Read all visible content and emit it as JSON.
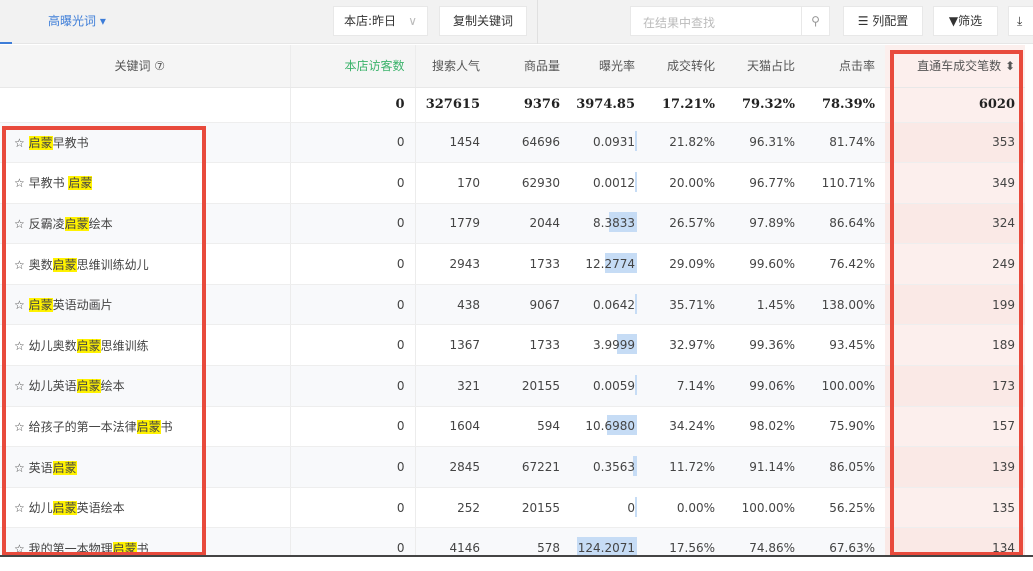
{
  "toolbar": {
    "tab": "高曝光词 ▾",
    "store_select": "本店:昨日",
    "copy_button": "复制关键词",
    "search_placeholder": "在结果中查找",
    "column_config": "☰ 列配置",
    "filter": "▼筛选",
    "download_icon": "download-icon"
  },
  "columns": [
    "关键词 ⑦",
    "本店访客数",
    "搜索人气",
    "商品量",
    "曝光率",
    "成交转化",
    "天猫占比",
    "点击率",
    "直通车成交笔数 ⬍"
  ],
  "colors": {
    "accent": "#3d7dd8",
    "highlight": "#fff200",
    "red_box": "#e84a3c",
    "visitors_header": "#3bb36b"
  },
  "total": [
    "",
    "0",
    "327615",
    "9376",
    "3974.85",
    "17.21%",
    "79.32%",
    "78.39%",
    "6020"
  ],
  "rows": [
    {
      "pre": "☆ ",
      "hl": "启蒙",
      "post": "早教书",
      "v": [
        "0",
        "1454",
        "64696",
        "0.0931",
        "21.82%",
        "96.31%",
        "81.74%",
        "353"
      ]
    },
    {
      "pre": "☆ 早教书 ",
      "hl": "启蒙",
      "post": "",
      "v": [
        "0",
        "170",
        "62930",
        "0.0012",
        "20.00%",
        "96.77%",
        "110.71%",
        "349"
      ]
    },
    {
      "pre": "☆ 反霸凌",
      "hl": "启蒙",
      "post": "绘本",
      "v": [
        "0",
        "1779",
        "2044",
        "8.3833",
        "26.57%",
        "97.89%",
        "86.64%",
        "324"
      ]
    },
    {
      "pre": "☆ 奥数",
      "hl": "启蒙",
      "post": "思维训练幼儿",
      "v": [
        "0",
        "2943",
        "1733",
        "12.2774",
        "29.09%",
        "99.60%",
        "76.42%",
        "249"
      ]
    },
    {
      "pre": "☆ ",
      "hl": "启蒙",
      "post": "英语动画片",
      "v": [
        "0",
        "438",
        "9067",
        "0.0642",
        "35.71%",
        "1.45%",
        "138.00%",
        "199"
      ]
    },
    {
      "pre": "☆ 幼儿奥数",
      "hl": "启蒙",
      "post": "思维训练",
      "v": [
        "0",
        "1367",
        "1733",
        "3.9999",
        "32.97%",
        "99.36%",
        "93.45%",
        "189"
      ]
    },
    {
      "pre": "☆ 幼儿英语",
      "hl": "启蒙",
      "post": "绘本",
      "v": [
        "0",
        "321",
        "20155",
        "0.0059",
        "7.14%",
        "99.06%",
        "100.00%",
        "173"
      ]
    },
    {
      "pre": "☆ 给孩子的第一本法律",
      "hl": "启蒙",
      "post": "书",
      "v": [
        "0",
        "1604",
        "594",
        "10.6980",
        "34.24%",
        "98.02%",
        "75.90%",
        "157"
      ]
    },
    {
      "pre": "☆ 英语",
      "hl": "启蒙",
      "post": "",
      "v": [
        "0",
        "2845",
        "67221",
        "0.3563",
        "11.72%",
        "91.14%",
        "86.05%",
        "139"
      ]
    },
    {
      "pre": "☆ 幼儿",
      "hl": "启蒙",
      "post": "英语绘本",
      "v": [
        "0",
        "252",
        "20155",
        "0",
        "0.00%",
        "100.00%",
        "56.25%",
        "135"
      ]
    },
    {
      "pre": "☆ 我的第一本物理",
      "hl": "启蒙",
      "post": "书",
      "v": [
        "0",
        "4146",
        "578",
        "124.2071",
        "17.56%",
        "74.86%",
        "67.63%",
        "134"
      ]
    }
  ]
}
